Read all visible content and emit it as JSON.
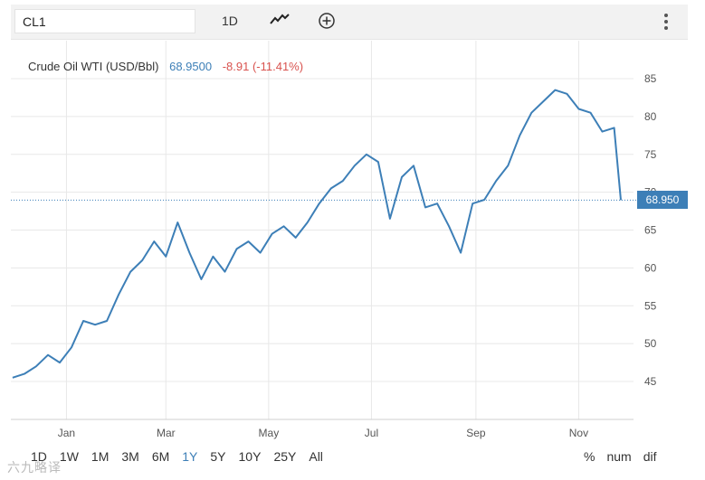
{
  "toolbar": {
    "symbol": "CL1",
    "interval": "1D",
    "line_icon": "line-chart-icon",
    "add_icon": "plus-circle-icon",
    "more_icon": "vertical-dots-icon"
  },
  "legend": {
    "name": "Crude Oil WTI (USD/Bbl)",
    "last": "68.9500",
    "change": "-8.91 (-11.41%)"
  },
  "last_badge": "68.950",
  "ranges": [
    "1D",
    "1W",
    "1M",
    "3M",
    "6M",
    "1Y",
    "5Y",
    "10Y",
    "25Y",
    "All"
  ],
  "active_range": "1Y",
  "modes": [
    "%",
    "num",
    "dif"
  ],
  "watermark": "六九略译",
  "colors": {
    "line": "#3d7fb7",
    "negative": "#d9534f",
    "grid": "#e8e8e8"
  },
  "chart_data": {
    "type": "line",
    "title": "",
    "xlabel": "",
    "ylabel": "",
    "x_ticks": [
      "Jan",
      "Mar",
      "May",
      "Jul",
      "Sep",
      "Nov"
    ],
    "y_ticks": [
      45,
      50,
      55,
      60,
      65,
      70,
      75,
      80,
      85
    ],
    "ylim": [
      40,
      88
    ],
    "x": [
      "2020-11-30",
      "2020-12-07",
      "2020-12-14",
      "2020-12-21",
      "2020-12-28",
      "2021-01-04",
      "2021-01-11",
      "2021-01-18",
      "2021-01-25",
      "2021-02-01",
      "2021-02-08",
      "2021-02-15",
      "2021-02-22",
      "2021-03-01",
      "2021-03-08",
      "2021-03-15",
      "2021-03-22",
      "2021-03-29",
      "2021-04-05",
      "2021-04-12",
      "2021-04-19",
      "2021-04-26",
      "2021-05-03",
      "2021-05-10",
      "2021-05-17",
      "2021-05-24",
      "2021-05-31",
      "2021-06-07",
      "2021-06-14",
      "2021-06-21",
      "2021-06-28",
      "2021-07-05",
      "2021-07-12",
      "2021-07-19",
      "2021-07-26",
      "2021-08-02",
      "2021-08-09",
      "2021-08-16",
      "2021-08-23",
      "2021-08-30",
      "2021-09-06",
      "2021-09-13",
      "2021-09-20",
      "2021-09-27",
      "2021-10-04",
      "2021-10-11",
      "2021-10-18",
      "2021-10-25",
      "2021-11-01",
      "2021-11-08",
      "2021-11-15",
      "2021-11-22",
      "2021-11-26"
    ],
    "series": [
      {
        "values": [
          45.5,
          46.0,
          47.0,
          48.5,
          47.5,
          49.5,
          53.0,
          52.5,
          53.0,
          56.5,
          59.5,
          61.0,
          63.5,
          61.5,
          66.0,
          62.0,
          58.5,
          61.5,
          59.5,
          62.5,
          63.5,
          62.0,
          64.5,
          65.5,
          64.0,
          66.0,
          68.5,
          70.5,
          71.5,
          73.5,
          75.0,
          74.0,
          66.5,
          72.0,
          73.5,
          68.0,
          68.5,
          65.5,
          62.0,
          68.5,
          69.0,
          71.5,
          73.5,
          77.5,
          80.5,
          82.0,
          83.5,
          83.0,
          81.0,
          80.5,
          78.0,
          78.5,
          68.95
        ]
      }
    ]
  }
}
